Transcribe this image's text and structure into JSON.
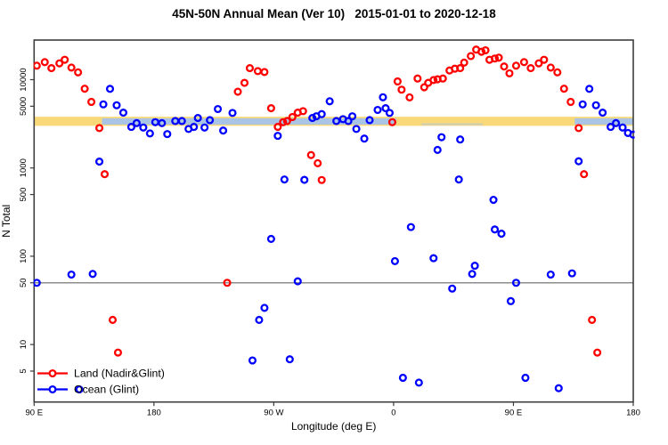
{
  "title": "45N-50N Annual Mean (Ver 10)   2015-01-01 to 2020-12-18",
  "legend": {
    "items": [
      {
        "label": "Land (Nadir&Glint)",
        "color": "#ff0000"
      },
      {
        "label": "Ocean (Glint)",
        "color": "#0000ff"
      }
    ]
  },
  "chart_data": {
    "type": "scatter",
    "title": "45N-50N Annual Mean (Ver 10)   2015-01-01 to 2020-12-18",
    "xlabel": "Longitude (deg E)",
    "ylabel": "N Total",
    "x_axis": {
      "range": [
        90,
        540
      ],
      "note": "longitude axis wraps around the globe",
      "ticks": [
        {
          "pos": 90,
          "label": "90 E"
        },
        {
          "pos": 180,
          "label": "180"
        },
        {
          "pos": 270,
          "label": "90 W"
        },
        {
          "pos": 360,
          "label": "0"
        },
        {
          "pos": 450,
          "label": "90 E"
        },
        {
          "pos": 540,
          "label": "180"
        }
      ]
    },
    "y_axis": {
      "scale": "log",
      "range": [
        2.2,
        28000
      ],
      "ticks": [
        5,
        10,
        50,
        100,
        500,
        1000,
        5000,
        10000
      ],
      "grid": false
    },
    "reference_line": {
      "value": 50,
      "color": "#8c8c8c"
    },
    "bands": {
      "yellow": {
        "value_from": 3000,
        "value_to": 3800,
        "pos_from": 90,
        "pos_to": 540,
        "color": "#f8d878"
      },
      "blue_color": "#a9c4e5",
      "blue_segments": [
        {
          "value_from": 3100,
          "value_to": 3650,
          "pos_from": 141,
          "pos_to": 362
        },
        {
          "value_from": 3100,
          "value_to": 3650,
          "pos_from": 496,
          "pos_to": 540
        }
      ],
      "blue_faint_segments": [
        {
          "value_from": 3050,
          "value_to": 3200,
          "pos_from": 381,
          "pos_to": 427
        }
      ]
    },
    "legend_position": "bottom-left",
    "series": [
      {
        "name": "Land (Nadir&Glint)",
        "color": "#ff0000",
        "points": [
          [
            92,
            14400
          ],
          [
            98,
            15800
          ],
          [
            103,
            13500
          ],
          [
            109,
            15300
          ],
          [
            113,
            16800
          ],
          [
            118,
            13700
          ],
          [
            123,
            12100
          ],
          [
            128,
            7900
          ],
          [
            133,
            5600
          ],
          [
            139,
            2830
          ],
          [
            143,
            850
          ],
          [
            149,
            19
          ],
          [
            153,
            8.1
          ],
          [
            235,
            50
          ],
          [
            243,
            7300
          ],
          [
            248,
            9200
          ],
          [
            252,
            13500
          ],
          [
            258,
            12500
          ],
          [
            263,
            12200
          ],
          [
            268,
            4750
          ],
          [
            273,
            2920
          ],
          [
            277,
            3300
          ],
          [
            280,
            3400
          ],
          [
            284,
            3770
          ],
          [
            288,
            4230
          ],
          [
            292,
            4400
          ],
          [
            298,
            1400
          ],
          [
            303,
            1130
          ],
          [
            306,
            730
          ],
          [
            359,
            3300
          ],
          [
            363,
            9550
          ],
          [
            366,
            7700
          ],
          [
            372,
            6300
          ],
          [
            378,
            10300
          ],
          [
            383,
            8200
          ],
          [
            386,
            9200
          ],
          [
            390,
            9900
          ],
          [
            393,
            10100
          ],
          [
            397,
            10300
          ],
          [
            402,
            12700
          ],
          [
            406,
            13300
          ],
          [
            410,
            13500
          ],
          [
            413,
            15600
          ],
          [
            418,
            18500
          ],
          [
            422,
            21900
          ],
          [
            426,
            20700
          ],
          [
            429,
            21500
          ],
          [
            432,
            16800
          ],
          [
            436,
            17350
          ],
          [
            439,
            17750
          ],
          [
            443,
            14100
          ],
          [
            447,
            11800
          ],
          [
            452,
            14400
          ],
          [
            458,
            15800
          ],
          [
            463,
            13500
          ],
          [
            469,
            15300
          ],
          [
            473,
            16800
          ],
          [
            478,
            13700
          ],
          [
            483,
            12100
          ],
          [
            488,
            7900
          ],
          [
            493,
            5600
          ],
          [
            499,
            2830
          ],
          [
            503,
            850
          ],
          [
            509,
            19
          ],
          [
            513,
            8.1
          ]
        ]
      },
      {
        "name": "Ocean (Glint)",
        "color": "#0000ff",
        "points": [
          [
            92,
            50
          ],
          [
            118,
            62
          ],
          [
            124,
            3.1
          ],
          [
            134,
            63
          ],
          [
            139,
            1180
          ],
          [
            142,
            5250
          ],
          [
            147,
            7870
          ],
          [
            152,
            5130
          ],
          [
            157,
            4230
          ],
          [
            163,
            2915
          ],
          [
            167,
            3220
          ],
          [
            172,
            2870
          ],
          [
            177,
            2460
          ],
          [
            181,
            3300
          ],
          [
            186,
            3220
          ],
          [
            190,
            2420
          ],
          [
            196,
            3400
          ],
          [
            201,
            3400
          ],
          [
            206,
            2765
          ],
          [
            210,
            2915
          ],
          [
            213,
            3680
          ],
          [
            218,
            2870
          ],
          [
            222,
            3480
          ],
          [
            228,
            4650
          ],
          [
            232,
            2650
          ],
          [
            239,
            4200
          ],
          [
            254,
            6.6
          ],
          [
            259,
            19
          ],
          [
            263,
            26
          ],
          [
            268,
            157
          ],
          [
            273,
            2310
          ],
          [
            278,
            740
          ],
          [
            282,
            6.8
          ],
          [
            288,
            52
          ],
          [
            293,
            733
          ],
          [
            299,
            3680
          ],
          [
            302,
            3850
          ],
          [
            306,
            4070
          ],
          [
            312,
            5690
          ],
          [
            317,
            3400
          ],
          [
            322,
            3570
          ],
          [
            326,
            3400
          ],
          [
            329,
            3850
          ],
          [
            332,
            2765
          ],
          [
            338,
            2150
          ],
          [
            342,
            3480
          ],
          [
            348,
            4540
          ],
          [
            352,
            6320
          ],
          [
            354,
            4750
          ],
          [
            357,
            4200
          ],
          [
            361,
            88
          ],
          [
            367,
            4.2
          ],
          [
            373,
            214
          ],
          [
            379,
            3.7
          ],
          [
            390,
            95
          ],
          [
            393,
            1600
          ],
          [
            396,
            2230
          ],
          [
            404,
            43
          ],
          [
            409,
            740
          ],
          [
            410,
            2100
          ],
          [
            419,
            63
          ],
          [
            421,
            78
          ],
          [
            435,
            435
          ],
          [
            436,
            201
          ],
          [
            441,
            180
          ],
          [
            448,
            31
          ],
          [
            452,
            50
          ],
          [
            459,
            4.2
          ],
          [
            478,
            62
          ],
          [
            484,
            3.2
          ],
          [
            494,
            64
          ],
          [
            499,
            1190
          ],
          [
            502,
            5250
          ],
          [
            507,
            7870
          ],
          [
            512,
            5130
          ],
          [
            517,
            4230
          ],
          [
            523,
            2915
          ],
          [
            527,
            3220
          ],
          [
            532,
            2870
          ],
          [
            536,
            2490
          ],
          [
            540,
            2380
          ]
        ]
      }
    ]
  }
}
